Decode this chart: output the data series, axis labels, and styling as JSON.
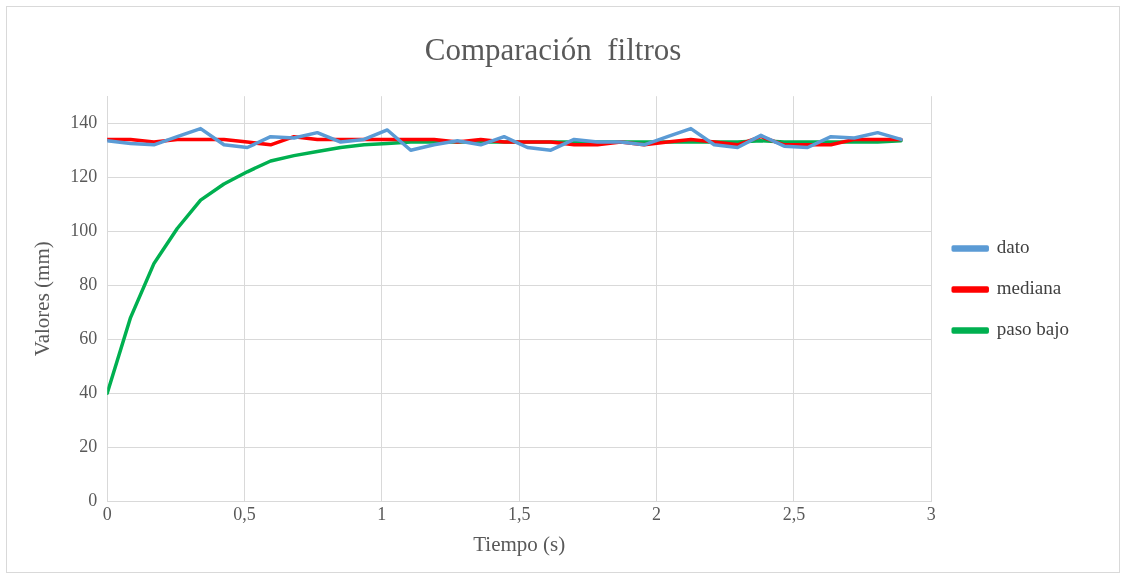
{
  "chart_data": {
    "type": "line",
    "title": "Comparación  filtros",
    "xlabel": "Tiempo (s)",
    "ylabel": "Valores (mm)",
    "x": [
      0,
      0.085,
      0.17,
      0.255,
      0.34,
      0.425,
      0.51,
      0.595,
      0.68,
      0.765,
      0.85,
      0.935,
      1.02,
      1.105,
      1.19,
      1.275,
      1.36,
      1.445,
      1.53,
      1.615,
      1.7,
      1.785,
      1.87,
      1.955,
      2.04,
      2.125,
      2.21,
      2.295,
      2.38,
      2.465,
      2.55,
      2.635,
      2.72,
      2.805,
      2.89
    ],
    "series": [
      {
        "name": "dato",
        "color": "#5b9bd5",
        "values": [
          133.5,
          132.5,
          132,
          135,
          138,
          132,
          131,
          135,
          134.5,
          136.5,
          133,
          134,
          137.5,
          130,
          132,
          133.5,
          132,
          135,
          131,
          130,
          134,
          133,
          133,
          132,
          135,
          138,
          132,
          131,
          135.5,
          131.5,
          131,
          135,
          134.5,
          136.5,
          134
        ]
      },
      {
        "name": "mediana",
        "color": "#ff0000",
        "values": [
          134,
          134,
          133,
          134,
          134,
          134,
          133,
          132,
          135,
          134,
          134,
          134,
          134,
          134,
          134,
          133,
          134,
          133,
          133,
          133,
          132,
          132,
          133,
          132,
          133,
          134,
          133,
          132,
          135,
          132,
          132,
          132,
          134,
          134,
          134
        ]
      },
      {
        "name": "paso bajo",
        "color": "#00b050",
        "values": [
          40,
          68,
          88,
          101,
          111.5,
          117.5,
          122,
          126,
          128,
          129.5,
          131,
          132,
          132.5,
          133,
          133,
          133,
          133,
          133,
          133,
          133,
          133,
          133,
          133,
          133,
          133,
          133,
          133,
          133,
          133.5,
          133,
          133,
          133,
          133,
          133,
          133.5
        ]
      }
    ],
    "xlim": [
      0,
      3
    ],
    "xticks": [
      0,
      {
        "value": 0.5,
        "label": "0,5"
      },
      1,
      {
        "value": 1.5,
        "label": "1,5"
      },
      2,
      {
        "value": 2.5,
        "label": "2,5"
      },
      3
    ],
    "ylim": [
      0,
      150
    ],
    "yticks": [
      0,
      20,
      40,
      60,
      80,
      100,
      120,
      140
    ],
    "grid": true,
    "legend": "right",
    "marker": "none",
    "line_style": "solid"
  }
}
